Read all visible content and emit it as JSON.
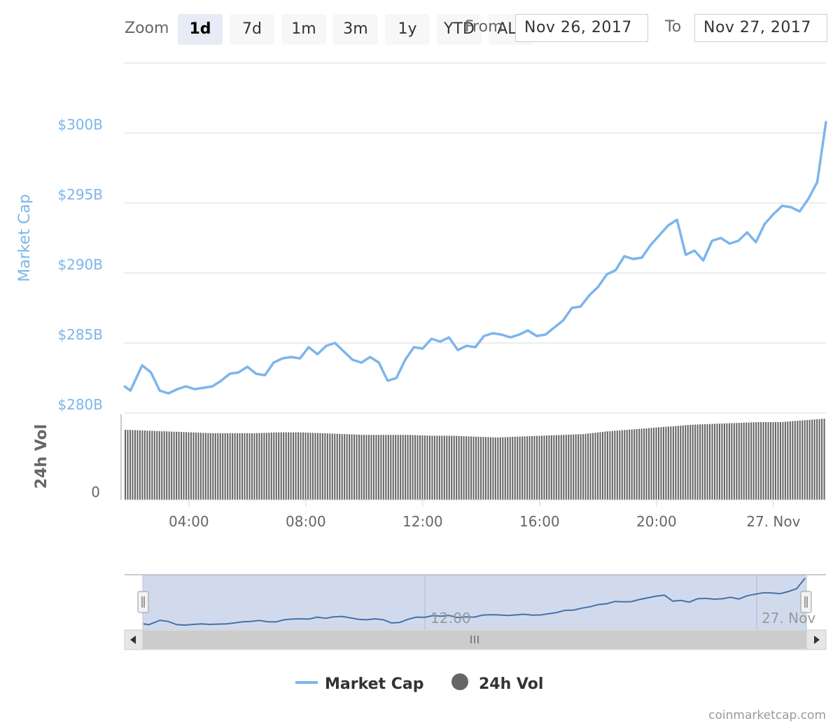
{
  "rangeSelector": {
    "zoom_label": "Zoom",
    "buttons": [
      "1d",
      "7d",
      "1m",
      "3m",
      "1y",
      "YTD",
      "ALL"
    ],
    "selected": "1d",
    "from_label": "From",
    "to_label": "To",
    "from_value": "Nov 26, 2017",
    "to_value": "Nov 27, 2017"
  },
  "credit": "coinmarketcap.com",
  "colors": {
    "market_cap": "#7cb5ec",
    "volume": "#666666",
    "grid": "#e6e6e6",
    "navigator_mask": "#ccd6eb",
    "navigator_line": "#4572a7"
  },
  "chart_data": {
    "type": "line",
    "x_tick_labels": [
      "04:00",
      "08:00",
      "12:00",
      "16:00",
      "20:00",
      "27. Nov"
    ],
    "navigator_tick_labels": [
      "12:00",
      "27. Nov"
    ],
    "legend": {
      "position": "bottom-center",
      "items": [
        "Market Cap",
        "24h Vol"
      ]
    },
    "grid": true,
    "market_cap": {
      "name": "Market Cap",
      "axis_label": "Market Cap",
      "unit": "billion USD",
      "tick_labels": [
        "$280B",
        "$285B",
        "$290B",
        "$295B",
        "$300B"
      ],
      "ylim": [
        280,
        305
      ],
      "x_hours": [
        0,
        0.2,
        0.6,
        0.9,
        1.2,
        1.5,
        1.8,
        2.1,
        2.4,
        2.7,
        3.0,
        3.3,
        3.6,
        3.9,
        4.2,
        4.5,
        4.8,
        5.1,
        5.4,
        5.7,
        6.0,
        6.3,
        6.6,
        6.9,
        7.2,
        7.5,
        7.8,
        8.1,
        8.4,
        8.7,
        9.0,
        9.3,
        9.6,
        9.9,
        10.2,
        10.5,
        10.8,
        11.1,
        11.4,
        11.7,
        12.0,
        12.3,
        12.6,
        12.9,
        13.2,
        13.5,
        13.8,
        14.1,
        14.4,
        14.7,
        15.0,
        15.3,
        15.6,
        15.9,
        16.2,
        16.5,
        16.8,
        17.1,
        17.4,
        17.7,
        18.0,
        18.3,
        18.6,
        18.9,
        19.2,
        19.5,
        19.8,
        20.1,
        20.4,
        20.7,
        21.0,
        21.3,
        21.6,
        21.9,
        22.2,
        22.5,
        22.8,
        23.1,
        23.4,
        23.7,
        24.0
      ],
      "values": [
        281.9,
        281.6,
        283.4,
        282.9,
        281.6,
        281.4,
        281.7,
        281.9,
        281.7,
        281.8,
        281.9,
        282.3,
        282.8,
        282.9,
        283.3,
        282.8,
        282.7,
        283.6,
        283.9,
        284.0,
        283.9,
        284.7,
        284.2,
        284.8,
        285.0,
        284.4,
        283.8,
        283.6,
        284.0,
        283.6,
        282.3,
        282.5,
        283.8,
        284.7,
        284.6,
        285.3,
        285.1,
        285.4,
        284.5,
        284.8,
        284.7,
        285.5,
        285.7,
        285.6,
        285.4,
        285.6,
        285.9,
        285.5,
        285.6,
        286.1,
        286.6,
        287.5,
        287.6,
        288.4,
        289.0,
        289.9,
        290.2,
        291.2,
        291.0,
        291.1,
        292.0,
        292.7,
        293.4,
        293.8,
        291.3,
        291.6,
        290.9,
        292.3,
        292.5,
        292.1,
        292.3,
        292.9,
        292.2,
        293.5,
        294.2,
        294.8,
        294.7,
        294.4,
        295.3,
        296.5,
        300.8
      ]
    },
    "volume": {
      "name": "24h Vol",
      "axis_label": "24h Vol",
      "tick_labels": [
        "0"
      ],
      "relative_levels": [
        0.82,
        0.81,
        0.8,
        0.79,
        0.78,
        0.78,
        0.78,
        0.79,
        0.79,
        0.78,
        0.77,
        0.76,
        0.76,
        0.76,
        0.75,
        0.75,
        0.74,
        0.73,
        0.74,
        0.75,
        0.76,
        0.77,
        0.8,
        0.82,
        0.84,
        0.86,
        0.88,
        0.89,
        0.9,
        0.91,
        0.91,
        0.93,
        0.95
      ]
    }
  }
}
